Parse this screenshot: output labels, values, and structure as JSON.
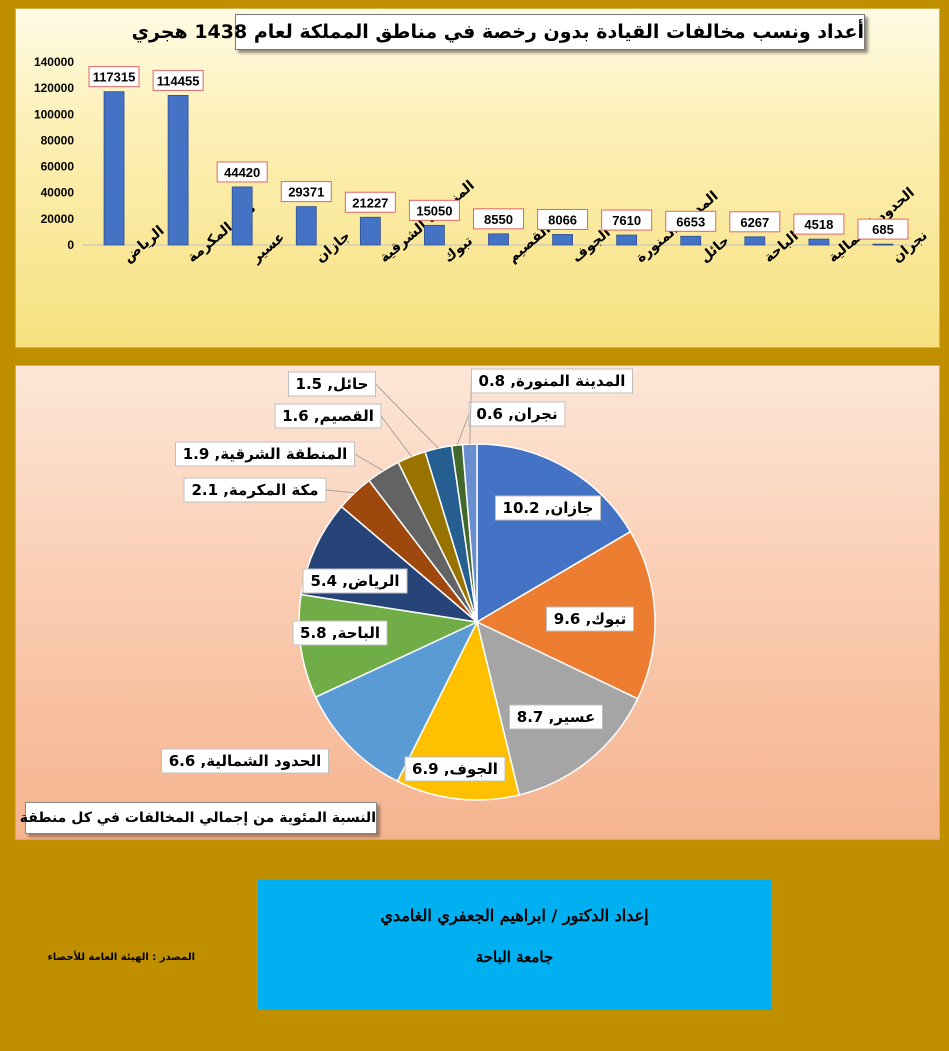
{
  "bar_title": "أعداد ونسب مخالفات القيادة بدون رخصة في مناطق المملكة لعام 1438 هجري",
  "pie_caption": "النسبة المئوية من إجمالي المخالفات في كل منطقة",
  "credits": {
    "author": "إعداد الدكتور / ابراهيم الجعفري الغامدي",
    "university": "جامعة الباحة"
  },
  "source": "المصدر : الهيئة العامة للأحصاء",
  "chart_data": [
    {
      "type": "bar",
      "title": "أعداد ونسب مخالفات القيادة بدون رخصة في مناطق المملكة لعام 1438 هجري",
      "categories": [
        "الرياض",
        "مكة المكرمة",
        "عسير",
        "جازان",
        "المنطقة الشرقية",
        "تبوك",
        "القصيم",
        "الجوف",
        "المدينة المنورة",
        "حائل",
        "الباحة",
        "الحدود الشمالية",
        "نجران"
      ],
      "values": [
        117315,
        114455,
        44420,
        29371,
        21227,
        15050,
        8550,
        8066,
        7610,
        6653,
        6267,
        4518,
        685
      ],
      "ylim": [
        0,
        140000
      ],
      "yticks": [
        0,
        20000,
        40000,
        60000,
        80000,
        100000,
        120000,
        140000
      ],
      "bar_color": "#4472c4",
      "grid": false
    },
    {
      "type": "pie",
      "title": "النسبة المئوية من إجمالي المخالفات في كل منطقة",
      "slices": [
        {
          "label": "جازان",
          "value": 10.2,
          "color": "#4472c4"
        },
        {
          "label": "تبوك",
          "value": 9.6,
          "color": "#ed7d31"
        },
        {
          "label": "عسير",
          "value": 8.7,
          "color": "#a5a5a5"
        },
        {
          "label": "الجوف",
          "value": 6.9,
          "color": "#ffc000"
        },
        {
          "label": "الحدود الشمالية",
          "value": 6.6,
          "color": "#5b9bd5"
        },
        {
          "label": "الباحة",
          "value": 5.8,
          "color": "#70ad47"
        },
        {
          "label": "الرياض",
          "value": 5.4,
          "color": "#264478"
        },
        {
          "label": "مكة المكرمة",
          "value": 2.1,
          "color": "#9e480e"
        },
        {
          "label": "المنطقة الشرقية",
          "value": 1.9,
          "color": "#636363"
        },
        {
          "label": "القصيم",
          "value": 1.6,
          "color": "#997300"
        },
        {
          "label": "حائل",
          "value": 1.5,
          "color": "#255e91"
        },
        {
          "label": "نجران",
          "value": 0.6,
          "color": "#43682b"
        },
        {
          "label": "المدينة المنورة",
          "value": 0.8,
          "color": "#698ed0"
        }
      ]
    }
  ]
}
